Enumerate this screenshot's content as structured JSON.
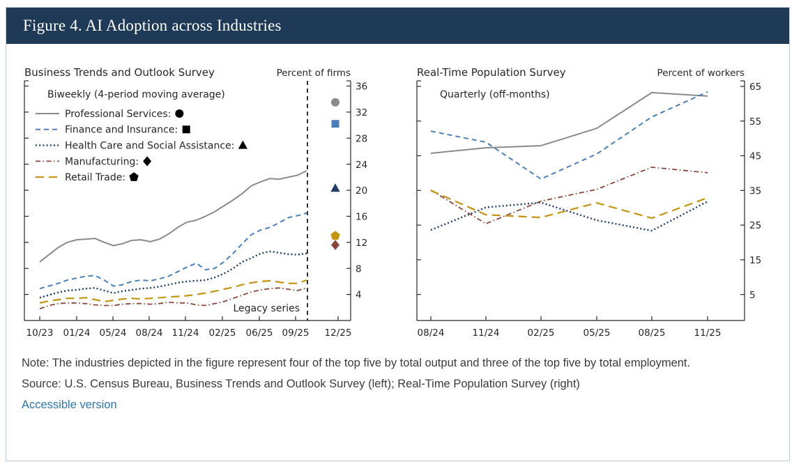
{
  "header": {
    "title": "Figure 4. AI Adoption across Industries"
  },
  "colors": {
    "header_bg": "#1e3a56",
    "gray": "#8a8a8a",
    "blue": "#4a7ebb",
    "navy": "#1f3a67",
    "brown": "#8a4438",
    "gold": "#c2930e",
    "axis": "#262626",
    "link": "#2e75b6",
    "border": "#bcc8d4"
  },
  "chart_data": [
    {
      "type": "line",
      "title": "Business Trends and Outlook Survey",
      "unit_label": "Percent of firms",
      "subtitle": "Biweekly (4-period moving average)",
      "legend_position": "top-left",
      "grid": false,
      "x_tick_labels": [
        "10/23",
        "01/24",
        "05/24",
        "08/24",
        "11/24",
        "02/25",
        "06/25",
        "09/25",
        "12/25"
      ],
      "ylim": [
        0,
        36.8
      ],
      "yticks": [
        4,
        8,
        12,
        16,
        20,
        24,
        28,
        32,
        36
      ],
      "divider_label": "Legacy series",
      "series": [
        {
          "name": "Professional Services",
          "legend_label": "Professional Services:",
          "marker": "circle",
          "color": "gray",
          "dash": "solid",
          "values": [
            9.0,
            10.1,
            11.2,
            12.0,
            12.4,
            12.5,
            12.6,
            12.0,
            11.5,
            11.8,
            12.3,
            12.4,
            12.1,
            12.5,
            13.3,
            14.3,
            15.1,
            15.4,
            16.0,
            16.7,
            17.6,
            18.5,
            19.5,
            20.7,
            21.3,
            21.8,
            21.7,
            22.0,
            22.3,
            23.0
          ],
          "latest_value": 33.5
        },
        {
          "name": "Finance and Insurance",
          "legend_label": "Finance and Insurance:",
          "marker": "square",
          "color": "blue",
          "dash": "dashed",
          "values": [
            4.9,
            5.3,
            5.7,
            6.2,
            6.5,
            6.8,
            6.9,
            6.2,
            5.3,
            5.5,
            6.0,
            6.2,
            6.1,
            6.4,
            6.8,
            7.5,
            8.2,
            8.8,
            7.8,
            8.0,
            9.0,
            10.3,
            11.8,
            13.2,
            13.9,
            14.3,
            15.0,
            15.8,
            16.1,
            16.5
          ],
          "latest_value": 30.2
        },
        {
          "name": "Health Care and Social Assistance",
          "legend_label": "Health Care and Social Assistance:",
          "marker": "triangle",
          "color": "navy",
          "dash": "dotted",
          "values": [
            3.5,
            3.9,
            4.3,
            4.6,
            4.7,
            4.9,
            5.0,
            4.6,
            4.2,
            4.5,
            4.7,
            4.9,
            5.0,
            5.2,
            5.5,
            5.8,
            6.0,
            6.1,
            6.2,
            6.6,
            7.2,
            8.0,
            9.0,
            9.6,
            10.3,
            10.6,
            10.4,
            10.2,
            10.1,
            10.3
          ],
          "latest_value": 20.3
        },
        {
          "name": "Manufacturing",
          "legend_label": "Manufacturing:",
          "marker": "diamond",
          "color": "brown",
          "dash": "dashdot",
          "values": [
            1.8,
            2.3,
            2.6,
            2.7,
            2.7,
            2.6,
            2.4,
            2.3,
            2.3,
            2.5,
            2.6,
            2.6,
            2.5,
            2.6,
            2.8,
            2.7,
            2.7,
            2.4,
            2.3,
            2.6,
            2.9,
            3.4,
            3.9,
            4.4,
            4.7,
            4.9,
            5.0,
            4.8,
            4.6,
            5.0
          ],
          "latest_value": 11.6
        },
        {
          "name": "Retail Trade",
          "legend_label": "Retail Trade:",
          "marker": "pentagon",
          "color": "gold",
          "dash": "longdash",
          "values": [
            2.7,
            3.0,
            3.2,
            3.4,
            3.4,
            3.5,
            3.2,
            2.9,
            3.1,
            3.3,
            3.4,
            3.3,
            3.4,
            3.5,
            3.6,
            3.7,
            3.8,
            4.0,
            4.2,
            4.5,
            4.8,
            5.1,
            5.5,
            5.8,
            6.0,
            6.1,
            5.9,
            5.7,
            5.7,
            6.2
          ],
          "latest_value": 13.0
        }
      ]
    },
    {
      "type": "line",
      "title": "Real-Time Population Survey",
      "unit_label": "Percent of workers",
      "subtitle": "Quarterly (off-months)",
      "grid": false,
      "x_tick_labels": [
        "08/24",
        "11/24",
        "02/25",
        "05/25",
        "08/25",
        "11/25"
      ],
      "ylim": [
        -2.5,
        66.6
      ],
      "yticks": [
        5,
        15,
        25,
        35,
        45,
        55,
        65
      ],
      "series": [
        {
          "name": "Professional Services",
          "color": "gray",
          "dash": "solid",
          "values": [
            45.7,
            47.3,
            47.9,
            52.9,
            63.2,
            62.2
          ]
        },
        {
          "name": "Finance and Insurance",
          "color": "blue",
          "dash": "dashed",
          "values": [
            52.1,
            48.9,
            38.3,
            45.5,
            56.2,
            63.4
          ]
        },
        {
          "name": "Health Care and Social Assistance",
          "color": "navy",
          "dash": "dotted",
          "values": [
            23.6,
            30.1,
            31.5,
            26.4,
            23.4,
            31.8
          ]
        },
        {
          "name": "Manufacturing",
          "color": "brown",
          "dash": "dashdot",
          "values": [
            35.1,
            25.4,
            31.9,
            35.3,
            41.7,
            40.1
          ]
        },
        {
          "name": "Retail Trade",
          "color": "gold",
          "dash": "longdash",
          "values": [
            35.0,
            28.0,
            27.2,
            31.4,
            27.0,
            32.9
          ]
        }
      ]
    }
  ],
  "notes": {
    "note": "Note: The industries depicted in the figure represent four of the top five by total output and three of the top five by total employment.",
    "source": "Source: U.S. Census Bureau, Business Trends and Outlook Survey (left); Real-Time Population Survey (right)",
    "accessible_link": "Accessible version"
  }
}
